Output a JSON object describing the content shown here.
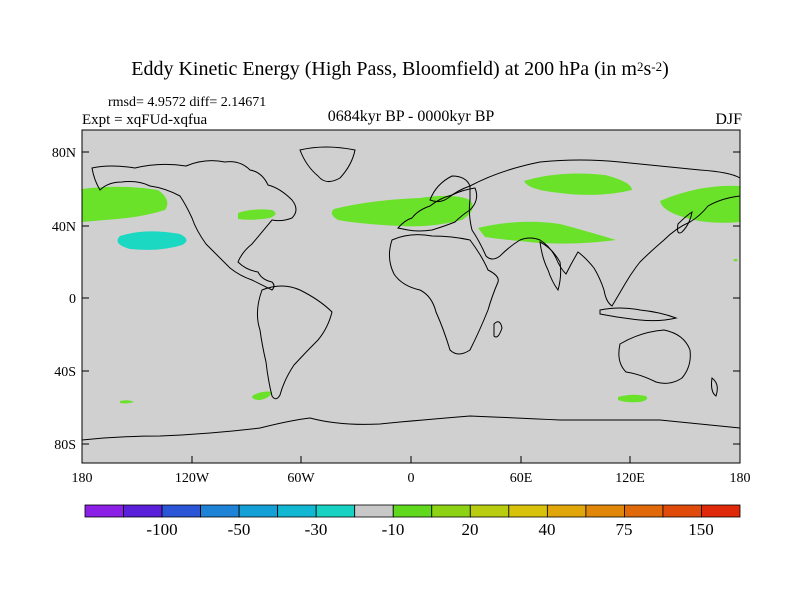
{
  "title": {
    "main": "Eddy Kinetic Energy (High Pass, Bloomfield) at 200 hPa (in m",
    "sup1": "2",
    "mid": "s",
    "sup2": "-2",
    "end": ")"
  },
  "stats": "rmsd= 4.9572 diff= 2.14671",
  "experiment": "Expt = xqFUd-xqfua",
  "period": "0684kyr BP - 0000kyr BP",
  "season": "DJF",
  "y_axis_labels": [
    "80N",
    "40N",
    "0",
    "40S",
    "80S"
  ],
  "x_axis_labels": [
    "180",
    "120W",
    "60W",
    "0",
    "60E",
    "120E",
    "180"
  ],
  "colorbar": {
    "colors": [
      "#8c1fe6",
      "#5a1fd9",
      "#2a55d6",
      "#1e82d6",
      "#14a0d6",
      "#12b8d2",
      "#17d2c2",
      "#c8c8c8",
      "#5fd81e",
      "#8ed215",
      "#b8cc10",
      "#d9c20c",
      "#e0a60a",
      "#e08609",
      "#e06a0a",
      "#e04a0a",
      "#e0280a"
    ],
    "labels": [
      "-100",
      "-50",
      "-30",
      "-10",
      "20",
      "40",
      "75",
      "150"
    ]
  },
  "colors": {
    "map_background": "#d0d0d0",
    "positive": "#6ae22a",
    "negative": "#1ad8c2"
  }
}
